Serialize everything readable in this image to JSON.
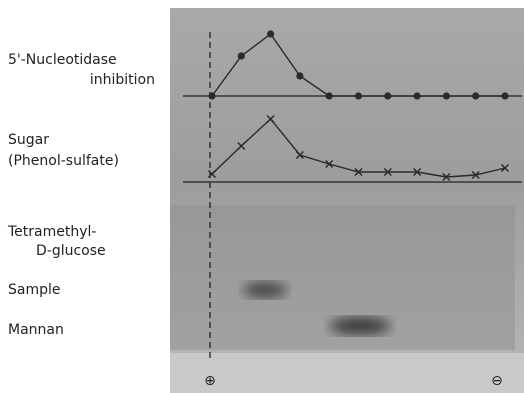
{
  "chart_data": [
    {
      "type": "line",
      "label_lines": [
        "5'-Nucleotidase",
        "inhibition"
      ],
      "marker": "circle",
      "color": "#2a2a2a",
      "x": [
        0,
        1,
        2,
        3,
        4,
        5,
        6,
        7,
        8,
        9,
        10
      ],
      "values": [
        0,
        40,
        62,
        20,
        0,
        0,
        0,
        0,
        0,
        0,
        0
      ],
      "xlim": [
        0,
        10
      ],
      "ylim": [
        0,
        70
      ]
    },
    {
      "type": "line",
      "label_lines": [
        "Sugar",
        "(Phenol-sulfate)"
      ],
      "marker": "x",
      "color": "#2a2a2a",
      "x": [
        0,
        1,
        2,
        3,
        4,
        5,
        6,
        7,
        8,
        9,
        10
      ],
      "values": [
        8,
        36,
        63,
        27,
        18,
        10,
        10,
        10,
        5,
        7,
        14
      ],
      "xlim": [
        0,
        10
      ],
      "ylim": [
        0,
        70
      ]
    }
  ],
  "lanes": [
    [
      "Tetramethyl-",
      "D-glucose"
    ],
    [
      "Sample"
    ],
    [
      "Mannan"
    ]
  ],
  "electrodes": [
    "⊕",
    "⊖"
  ]
}
